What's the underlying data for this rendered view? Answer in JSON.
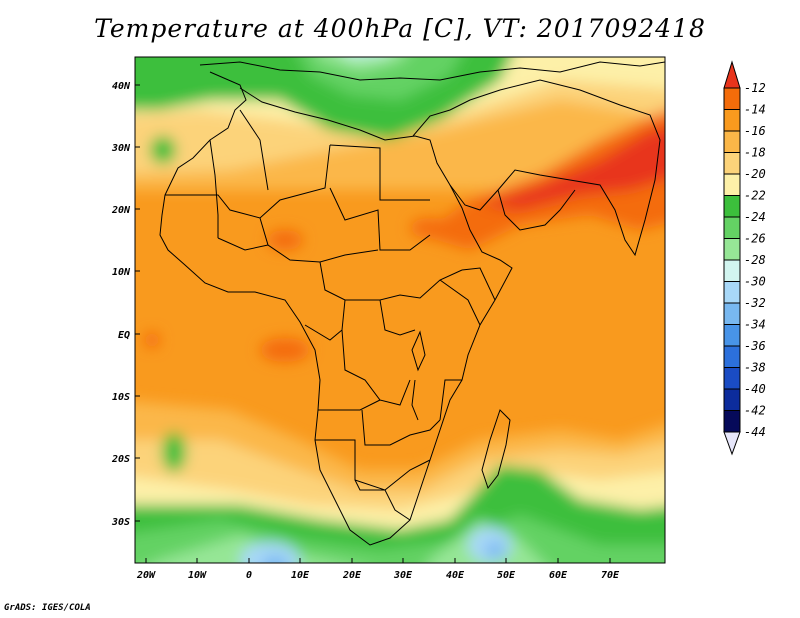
{
  "title": "Temperature at 400hPa [C], VT: 2017092418",
  "credit": "GrADS: IGES/COLA",
  "lat_labels": [
    "40N",
    "30N",
    "20N",
    "10N",
    "EQ",
    "10S",
    "20S",
    "30S"
  ],
  "lon_labels": [
    "20W",
    "10W",
    "0",
    "10E",
    "20E",
    "30E",
    "40E",
    "50E",
    "60E",
    "70E"
  ],
  "colorbar": {
    "levels": [
      "-12",
      "-14",
      "-16",
      "-18",
      "-20",
      "-22",
      "-24",
      "-26",
      "-28",
      "-30",
      "-32",
      "-34",
      "-36",
      "-38",
      "-40",
      "-42",
      "-44"
    ],
    "colors": [
      "#e8341c",
      "#f46c0a",
      "#f99a1e",
      "#fbb748",
      "#fcd37a",
      "#fdf0a8",
      "#3cbf3c",
      "#64d264",
      "#96e696",
      "#d2f5f0",
      "#a8d8f8",
      "#78b8f0",
      "#4894e8",
      "#2c70dc",
      "#1a4cc4",
      "#0c2c9c",
      "#060a5a",
      "#e6e6fa"
    ]
  },
  "colors": {
    "warm_max": "#e8341c",
    "cold_green": "#3cbf3c",
    "cold_blue": "#4894e8",
    "coast": "#000000"
  }
}
